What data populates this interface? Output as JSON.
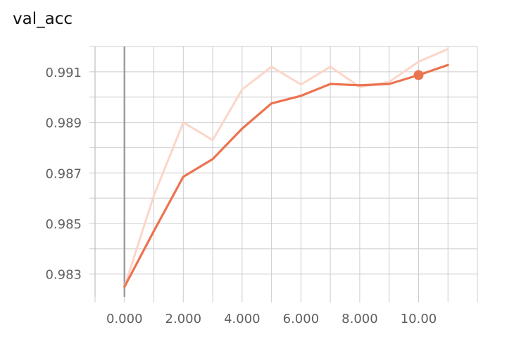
{
  "chart_data": {
    "type": "line",
    "title": "val_acc",
    "xlabel": "",
    "ylabel": "",
    "xlim": [
      -1,
      12
    ],
    "ylim": [
      0.9821,
      0.992
    ],
    "x_ticks": [
      0,
      2,
      4,
      6,
      8,
      10
    ],
    "x_tick_labels": [
      "0.000",
      "2.000",
      "4.000",
      "6.000",
      "8.000",
      "10.00"
    ],
    "y_ticks": [
      0.983,
      0.985,
      0.987,
      0.989,
      0.991
    ],
    "y_tick_labels": [
      "0.983",
      "0.985",
      "0.987",
      "0.989",
      "0.991"
    ],
    "grid": true,
    "legend": "none",
    "series": [
      {
        "role": "raw",
        "color": "#fbd6c9",
        "x": [
          0,
          1,
          2,
          3,
          4,
          5,
          6,
          7,
          8,
          9,
          10,
          11
        ],
        "y": [
          0.9825,
          0.9861,
          0.989,
          0.9883,
          0.9903,
          0.9912,
          0.9905,
          0.9912,
          0.9904,
          0.9906,
          0.9914,
          0.9919
        ]
      },
      {
        "role": "smoothed",
        "color": "#ec7350",
        "x": [
          0,
          1,
          2,
          3,
          4,
          5,
          6,
          7,
          8,
          9,
          10,
          11
        ],
        "y": [
          0.9825,
          0.9847,
          0.98685,
          0.98755,
          0.98875,
          0.98975,
          0.99005,
          0.99052,
          0.99047,
          0.99052,
          0.99087,
          0.99127
        ]
      }
    ],
    "highlight_point": {
      "x": 10,
      "y": 0.99087
    }
  }
}
